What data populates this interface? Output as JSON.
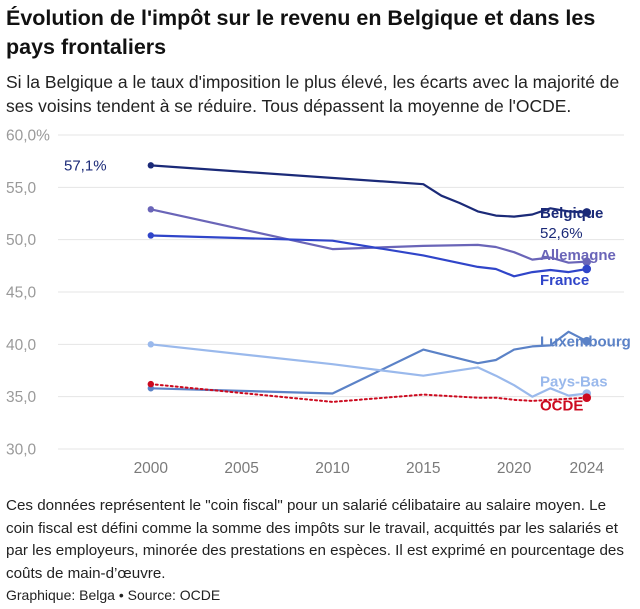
{
  "header": {
    "title": "Évolution de l'impôt sur le revenu en Belgique et dans les pays frontaliers",
    "subtitle": "Si la Belgique a le taux d'imposition le plus élevé, les écarts avec la majorité de ses voisins tendent à se réduire. Tous dépassent la moyenne de l'OCDE."
  },
  "footer": {
    "note": "Ces données représentent le \"coin fiscal\" pour un salarié célibataire au salaire moyen. Le coin fiscal est défini comme la somme des impôts sur le travail, acquittés par les salariés et par les employeurs, minorée des prestations en espèces. Il est exprimé en pourcentage des coûts de main-d’œuvre.",
    "credit": "Graphique: Belga • Source: OCDE"
  },
  "chart_data": {
    "type": "line",
    "ylim": [
      30,
      60
    ],
    "yticks": [
      {
        "value": 60,
        "label": "60,0%"
      },
      {
        "value": 55,
        "label": "55,0"
      },
      {
        "value": 50,
        "label": "50,0"
      },
      {
        "value": 45,
        "label": "45,0"
      },
      {
        "value": 40,
        "label": "40,0"
      },
      {
        "value": 35,
        "label": "35,0"
      },
      {
        "value": 30,
        "label": "30,0"
      }
    ],
    "xlim": [
      1995,
      2025.5
    ],
    "xticks": [
      {
        "value": 2000,
        "label": "2000"
      },
      {
        "value": 2005,
        "label": "2005"
      },
      {
        "value": 2010,
        "label": "2010"
      },
      {
        "value": 2015,
        "label": "2015"
      },
      {
        "value": 2020,
        "label": "2020"
      },
      {
        "value": 2024,
        "label": "2024"
      }
    ],
    "grid": true,
    "series": [
      {
        "name": "Belgique",
        "color": "#1b2a78",
        "dashed": false,
        "x": [
          2000,
          2015,
          2016,
          2017,
          2018,
          2019,
          2020,
          2021,
          2022,
          2023,
          2024
        ],
        "y": [
          57.1,
          55.3,
          54.2,
          53.5,
          52.7,
          52.3,
          52.2,
          52.4,
          53.0,
          52.7,
          52.6
        ],
        "start_label": "57,1%",
        "end_label": "52,6%"
      },
      {
        "name": "Allemagne",
        "color": "#6a65b8",
        "dashed": false,
        "x": [
          2000,
          2010,
          2015,
          2018,
          2019,
          2020,
          2021,
          2022,
          2023,
          2024
        ],
        "y": [
          52.9,
          49.1,
          49.4,
          49.5,
          49.3,
          48.8,
          48.1,
          48.3,
          47.8,
          47.9
        ]
      },
      {
        "name": "France",
        "color": "#3045c9",
        "dashed": false,
        "x": [
          2000,
          2010,
          2015,
          2018,
          2019,
          2020,
          2021,
          2022,
          2023,
          2024
        ],
        "y": [
          50.4,
          49.9,
          48.5,
          47.4,
          47.2,
          46.5,
          46.9,
          47.1,
          46.9,
          47.2
        ]
      },
      {
        "name": "Luxembourg",
        "color": "#5b82c7",
        "dashed": false,
        "x": [
          2000,
          2010,
          2015,
          2018,
          2019,
          2020,
          2021,
          2022,
          2023,
          2024
        ],
        "y": [
          35.8,
          35.3,
          39.5,
          38.2,
          38.5,
          39.5,
          39.8,
          39.9,
          41.2,
          40.3
        ]
      },
      {
        "name": "Pays-Bas",
        "color": "#9ab9ec",
        "dashed": false,
        "x": [
          2000,
          2010,
          2015,
          2018,
          2019,
          2020,
          2021,
          2022,
          2023,
          2024
        ],
        "y": [
          40.0,
          38.1,
          37.0,
          37.8,
          37.0,
          36.1,
          35.0,
          35.8,
          35.1,
          35.3
        ]
      },
      {
        "name": "OCDE",
        "color": "#cc0a1f",
        "dashed": true,
        "x": [
          2000,
          2010,
          2015,
          2018,
          2019,
          2020,
          2021,
          2022,
          2023,
          2024
        ],
        "y": [
          36.2,
          34.5,
          35.2,
          34.9,
          34.9,
          34.7,
          34.6,
          34.7,
          34.8,
          34.9
        ]
      }
    ]
  }
}
